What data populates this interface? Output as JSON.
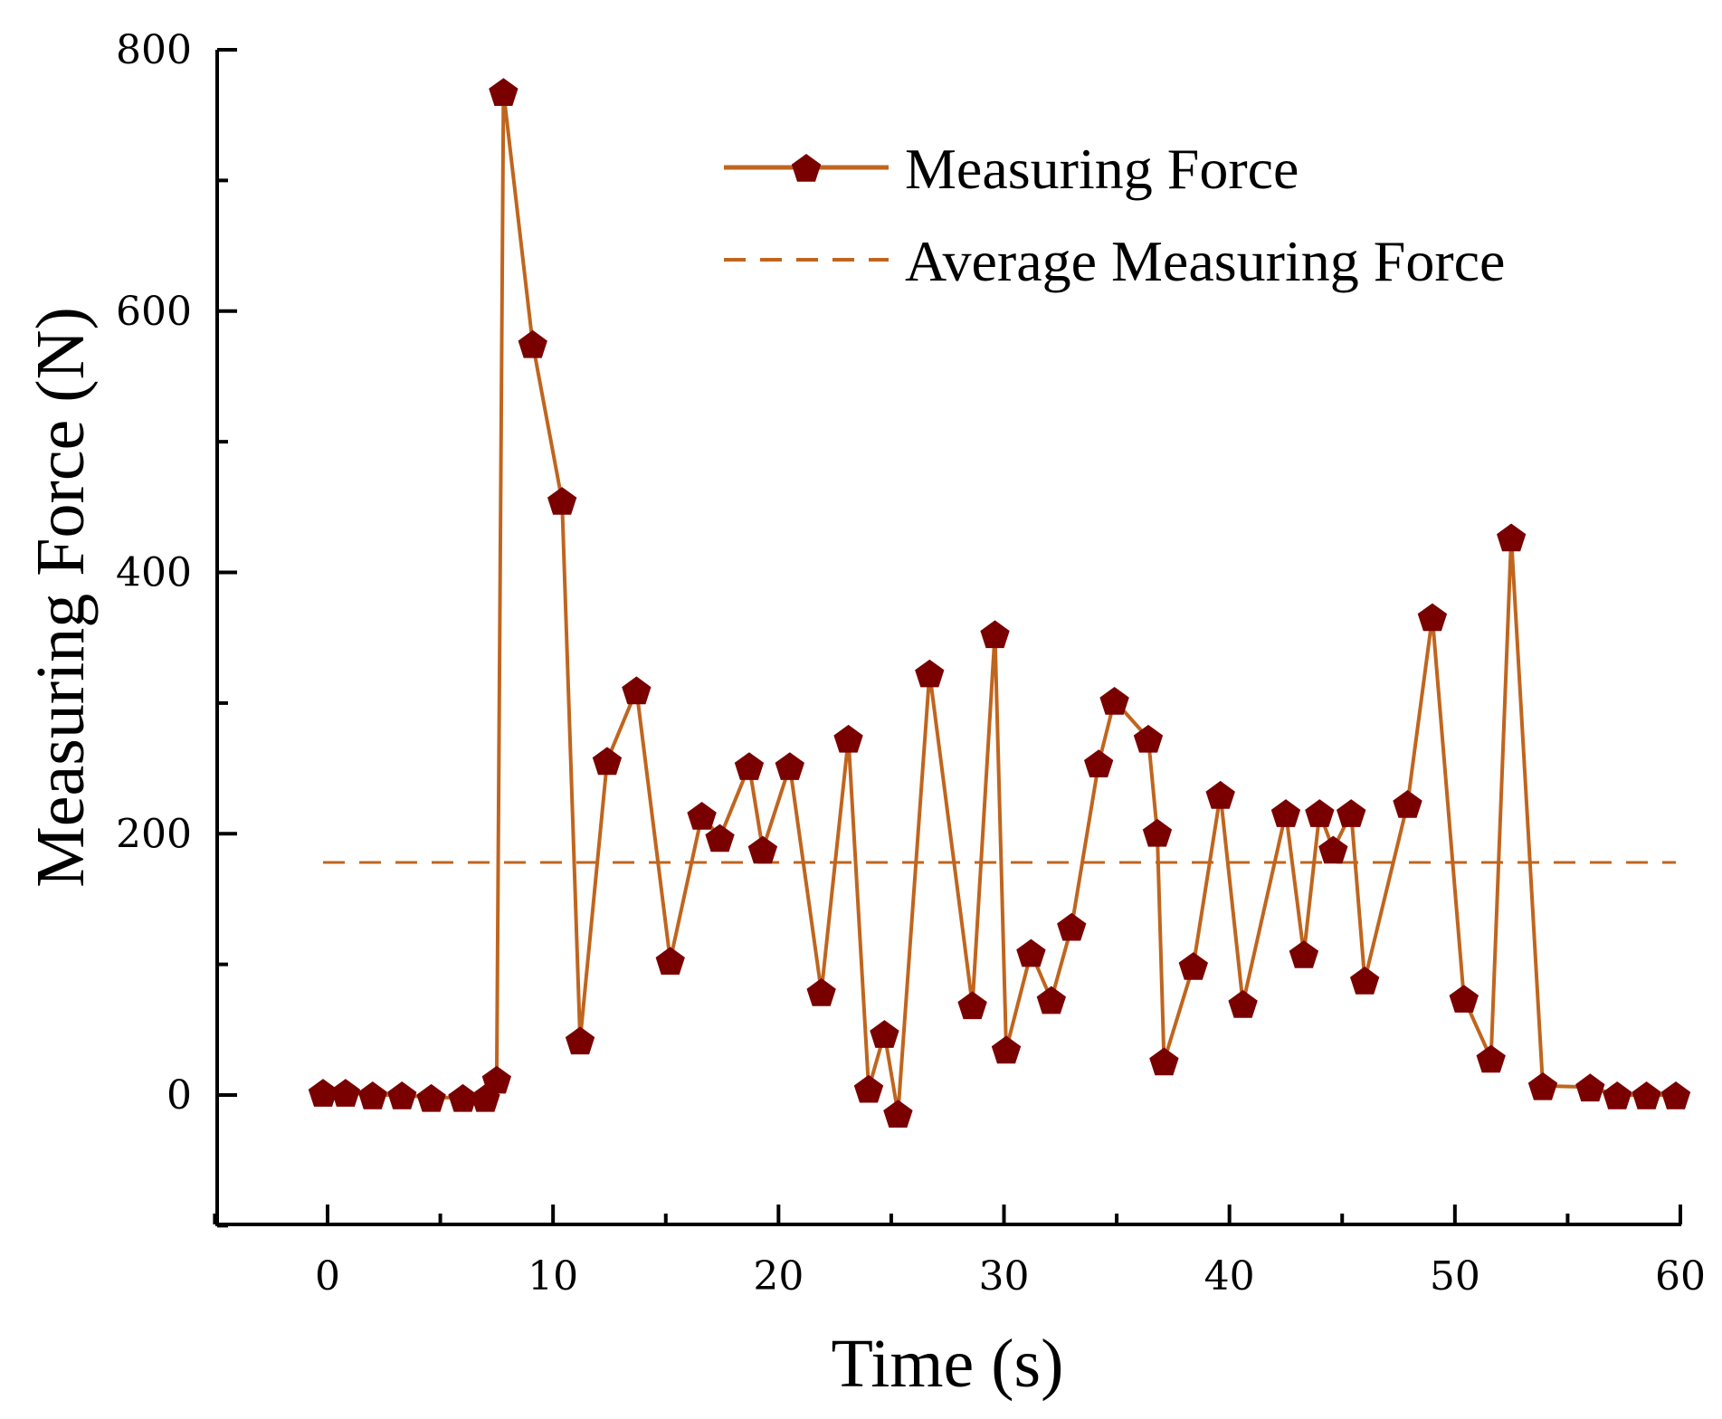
{
  "chart_data": {
    "type": "line",
    "xlabel": "Time (s)",
    "ylabel": "Measuring Force (N)",
    "xlim": [
      -5,
      60
    ],
    "ylim": [
      -100,
      800
    ],
    "x_ticks": [
      0,
      10,
      20,
      30,
      40,
      50,
      60
    ],
    "y_ticks": [
      0,
      200,
      400,
      600,
      800
    ],
    "x_minor_ticks": [
      -5,
      5,
      15,
      25,
      35,
      45,
      55
    ],
    "y_minor_ticks": [
      -100,
      100,
      300,
      500,
      700
    ],
    "legend_position": "top-right",
    "colors": {
      "line": "#c0651e",
      "marker": "#7a0000",
      "average": "#c0651e",
      "axis": "#000000"
    },
    "series": [
      {
        "name": "Measuring Force",
        "style": "line+pentagon-markers",
        "x": [
          -0.2,
          0.8,
          2.0,
          3.3,
          4.6,
          6.0,
          7.0,
          7.5,
          7.8,
          9.1,
          10.4,
          11.2,
          12.4,
          13.7,
          15.2,
          16.6,
          17.4,
          18.7,
          19.3,
          20.5,
          21.9,
          23.1,
          24.0,
          24.7,
          25.3,
          26.7,
          28.6,
          29.6,
          30.1,
          31.2,
          32.1,
          33.0,
          34.2,
          34.9,
          36.4,
          36.8,
          37.1,
          38.4,
          39.6,
          40.6,
          42.5,
          43.3,
          44.0,
          44.6,
          45.4,
          46.0,
          47.9,
          49.0,
          50.4,
          51.6,
          52.5,
          53.9,
          56.0,
          57.2,
          58.5,
          59.8
        ],
        "y": [
          2,
          2,
          0,
          0,
          -2,
          -2,
          -2,
          12,
          768,
          575,
          455,
          42,
          256,
          310,
          103,
          214,
          197,
          252,
          188,
          252,
          79,
          273,
          5,
          47,
          -14,
          323,
          69,
          353,
          35,
          109,
          73,
          129,
          254,
          302,
          273,
          201,
          26,
          99,
          230,
          70,
          216,
          108,
          216,
          188,
          216,
          88,
          223,
          366,
          74,
          28,
          427,
          7,
          6,
          0,
          0,
          0
        ]
      },
      {
        "name": "Average Measuring Force",
        "style": "dashed",
        "x": [
          -0.2,
          59.8
        ],
        "y": [
          178,
          178
        ]
      }
    ]
  }
}
